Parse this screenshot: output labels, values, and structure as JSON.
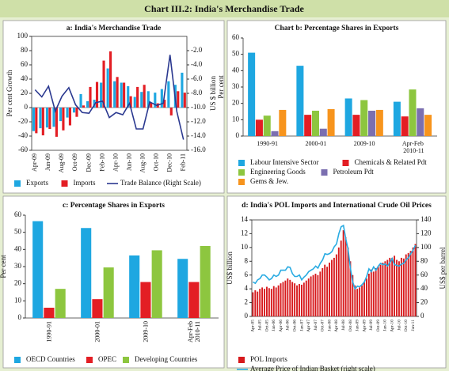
{
  "header": {
    "title": "Chart III.2: India's Merchandise Trade"
  },
  "chart_data": [
    {
      "type": "bar",
      "title": "a: India's Merchandise Trade",
      "ylabel": "Per cent Growth",
      "y2label": "US $ billion",
      "categories": [
        "Apr-09",
        null,
        "Jun-09",
        null,
        "Aug-09",
        null,
        "Oct-09",
        null,
        "Dec-09",
        null,
        "Feb-10",
        null,
        "Apr-10",
        null,
        "Jun-10",
        null,
        "Aug-10",
        null,
        "Oct-10",
        null,
        "Dec-10",
        null,
        "Feb-11"
      ],
      "series": [
        {
          "name": "Exports",
          "color": "#1ea7e1",
          "values": [
            -33,
            -29,
            -28,
            -27,
            -19,
            -14,
            -7,
            19,
            9,
            11,
            35,
            55,
            37,
            35,
            30,
            15,
            22,
            23,
            21,
            26,
            37,
            32,
            49
          ]
        },
        {
          "name": "Imports",
          "color": "#e31e24",
          "values": [
            -36,
            -39,
            -30,
            -41,
            -32,
            -25,
            -13,
            3,
            29,
            36,
            66,
            79,
            43,
            35,
            16,
            29,
            32,
            7,
            6,
            11,
            -11,
            23,
            21
          ]
        },
        {
          "name": "Trade Balance (Right Scale)",
          "color": "#2b3990",
          "type": "line",
          "axis": "y2",
          "values": [
            -7.5,
            -8.5,
            -7.0,
            -10.5,
            -8.4,
            -7.2,
            -9.6,
            -10.7,
            -10.8,
            -9.3,
            -9.1,
            -11.4,
            -10.7,
            -11.0,
            -9.4,
            -13.0,
            -13.0,
            -9.2,
            -9.7,
            -9.4,
            -2.6,
            -10.5,
            -14.5
          ]
        }
      ],
      "ylim": [
        -60,
        100
      ],
      "yticks": [
        -60,
        -40,
        -20,
        0,
        20,
        40,
        60,
        80,
        100
      ],
      "y2lim": [
        -16,
        0
      ],
      "y2ticks": [
        {
          "value": -16,
          "label": "-16.0"
        },
        {
          "value": -14,
          "label": "-14.0"
        },
        {
          "value": -12,
          "label": "-12.0"
        },
        {
          "value": -10,
          "label": "-10.0"
        },
        {
          "value": -8,
          "label": "-8.0"
        },
        {
          "value": -6,
          "label": "-6.0"
        },
        {
          "value": -4,
          "label": "-4.0"
        },
        {
          "value": -2,
          "label": "-2.0"
        }
      ],
      "grid": false
    },
    {
      "type": "bar",
      "title": "Chart b: Percentage Shares in Exports",
      "ylabel": "Per cent",
      "categories": [
        "1990-91",
        "2000-01",
        "2009-10",
        "Apr-Feb 2010-11"
      ],
      "series": [
        {
          "name": "Labour Intensive Sector",
          "color": "#1ea7e1",
          "values": [
            51,
            43,
            23,
            21
          ]
        },
        {
          "name": "Chemicals & Related Pdt",
          "color": "#e31e24",
          "values": [
            10,
            13,
            13,
            12
          ]
        },
        {
          "name": "Engineering Goods",
          "color": "#8dc63f",
          "values": [
            12.5,
            15.5,
            22,
            28.5
          ]
        },
        {
          "name": "Petroleum Pdt",
          "color": "#7b6fb0",
          "values": [
            3,
            4.5,
            15.5,
            17
          ]
        },
        {
          "name": "Gems & Jew.",
          "color": "#f7941d",
          "values": [
            16,
            16.5,
            16,
            13
          ]
        }
      ],
      "ylim": [
        0,
        60
      ],
      "yticks": [
        0,
        10,
        20,
        30,
        40,
        50,
        60
      ],
      "grid": false
    },
    {
      "type": "bar",
      "title": "c: Percentage Shares in  Exports",
      "ylabel": "Per cent",
      "categories": [
        "1990-91",
        "2000-01",
        "2009-10",
        "Apr-Feb 2010-11"
      ],
      "series": [
        {
          "name": "OECD Countries",
          "color": "#1ea7e1",
          "values": [
            56.5,
            52.5,
            36.5,
            34.5
          ]
        },
        {
          "name": "OPEC",
          "color": "#e31e24",
          "values": [
            6,
            11,
            21,
            21
          ]
        },
        {
          "name": "Developing Countries",
          "color": "#8dc63f",
          "values": [
            17,
            29.5,
            39.5,
            42
          ]
        }
      ],
      "ylim": [
        0,
        60
      ],
      "yticks": [
        0,
        10,
        20,
        30,
        40,
        50,
        60
      ],
      "grid": false
    },
    {
      "type": "bar",
      "title": "d: India's POL Imports and International Crude Oil Prices",
      "ylabel": "US$ billion",
      "y2label": "US$ per barrel",
      "categories": [
        "Apr-05",
        null,
        null,
        "Jul-05",
        null,
        null,
        "Oct-05",
        null,
        null,
        "Jan-06",
        null,
        null,
        "Apr-06",
        null,
        null,
        "Jul-06",
        null,
        null,
        "Oct-06",
        null,
        null,
        "Jan-07",
        null,
        null,
        "Apr-07",
        null,
        null,
        "Jul-07",
        null,
        null,
        "Oct-07",
        null,
        null,
        "Jan-08",
        null,
        null,
        "Apr-08",
        null,
        null,
        "Jul-08",
        null,
        null,
        "Oct-08",
        null,
        null,
        "Jan-09",
        null,
        null,
        "Apr-09",
        null,
        null,
        "Jul-09",
        null,
        null,
        "Oct-09",
        null,
        null,
        "Jan-10",
        null,
        null,
        "Apr-10",
        null,
        null,
        "Jul-10",
        null,
        null,
        "Oct-10",
        null,
        null,
        "Jan-11",
        null
      ],
      "series": [
        {
          "name": "POL Imports",
          "color": "#d7191c",
          "values": [
            3.5,
            3.8,
            3.6,
            4.0,
            4.2,
            4.0,
            4.3,
            4.1,
            4.0,
            4.4,
            4.2,
            4.5,
            4.8,
            5.0,
            5.2,
            5.5,
            5.3,
            5.0,
            4.8,
            4.5,
            4.7,
            4.6,
            4.9,
            5.2,
            5.5,
            5.8,
            6.0,
            6.2,
            6.0,
            6.5,
            7.0,
            7.5,
            7.2,
            7.8,
            8.2,
            8.5,
            9.0,
            10.0,
            11.0,
            12.5,
            11.5,
            10.0,
            8.0,
            6.0,
            4.5,
            4.0,
            4.2,
            4.5,
            5.0,
            5.5,
            6.2,
            6.8,
            6.5,
            7.0,
            7.2,
            7.5,
            7.8,
            8.0,
            8.2,
            8.5,
            8.5,
            8.8,
            8.2,
            8.0,
            8.5,
            8.4,
            9.0,
            9.2,
            9.5,
            10.0,
            10.5
          ]
        },
        {
          "name": "Average Price of Indian Basket (right scale)",
          "color": "#29abe2",
          "type": "line",
          "axis": "y2",
          "values": [
            50,
            48,
            53,
            55,
            60,
            60,
            57,
            53,
            55,
            60,
            58,
            60,
            67,
            67,
            67,
            72,
            71,
            62,
            58,
            58,
            60,
            53,
            57,
            60,
            65,
            67,
            69,
            73,
            70,
            77,
            82,
            91,
            90,
            91,
            94,
            101,
            105,
            120,
            130,
            132,
            113,
            97,
            70,
            50,
            40,
            44,
            43,
            46,
            50,
            58,
            69,
            65,
            72,
            67,
            73,
            77,
            75,
            76,
            73,
            78,
            84,
            75,
            74,
            73,
            76,
            77,
            82,
            85,
            91,
            96,
            103
          ]
        }
      ],
      "ylim": [
        0,
        14
      ],
      "yticks": [
        0,
        2,
        4,
        6,
        8,
        10,
        12,
        14
      ],
      "y2lim": [
        0,
        140
      ],
      "y2ticks": [
        0,
        20,
        40,
        60,
        80,
        100,
        120,
        140
      ],
      "grid": false
    }
  ]
}
